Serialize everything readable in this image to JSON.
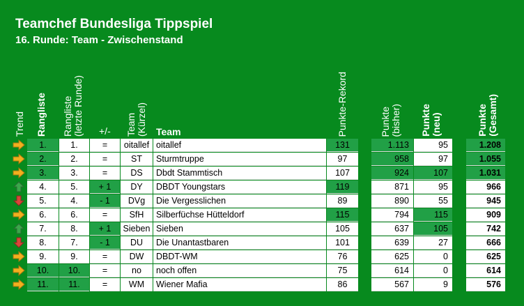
{
  "header": {
    "title": "Teamchef Bundesliga Tippspiel",
    "subtitle": "16. Runde: Team - Zwischenstand"
  },
  "columns": {
    "trend": "Trend",
    "rangliste": "Rangliste",
    "rangliste_letzte_1": "Rangliste",
    "rangliste_letzte_2": "(letzte Runde)",
    "plusminus": "+/-",
    "team_kuerzel_1": "Team",
    "team_kuerzel_2": "(Kürzel)",
    "team": "Team",
    "punkte_rekord": "Punkte-Rekord",
    "punkte_bisher_1": "Punkte",
    "punkte_bisher_2": "(bisher)",
    "punkte_neu_1": "Punkte",
    "punkte_neu_2": "(neu)",
    "punkte_gesamt_1": "Punkte",
    "punkte_gesamt_2": "(Gesamt)"
  },
  "colors": {
    "background": "#078a1e",
    "highlight": "#21a046",
    "arrow_right": "#f2b01e",
    "arrow_up": "#3aa84a",
    "arrow_down": "#d9453a"
  },
  "rows": [
    {
      "trend": "right-arrow-icon",
      "rank": "1.",
      "prev": "1.",
      "diff": "=",
      "short": "oitallef",
      "team": "oitallef",
      "rekord": "131",
      "bisher": "1.113",
      "neu": "95",
      "gesamt": "1.208"
    },
    {
      "trend": "right-arrow-icon",
      "rank": "2.",
      "prev": "2.",
      "diff": "=",
      "short": "ST",
      "team": "Sturmtruppe",
      "rekord": "97",
      "bisher": "958",
      "neu": "97",
      "gesamt": "1.055"
    },
    {
      "trend": "right-arrow-icon",
      "rank": "3.",
      "prev": "3.",
      "diff": "=",
      "short": "DS",
      "team": "Dbdt Stammtisch",
      "rekord": "107",
      "bisher": "924",
      "neu": "107",
      "gesamt": "1.031"
    },
    {
      "trend": "up-arrow-icon",
      "rank": "4.",
      "prev": "5.",
      "diff": "+ 1",
      "short": "DY",
      "team": "DBDT Youngstars",
      "rekord": "119",
      "bisher": "871",
      "neu": "95",
      "gesamt": "966"
    },
    {
      "trend": "down-arrow-icon",
      "rank": "5.",
      "prev": "4.",
      "diff": "- 1",
      "short": "DVg",
      "team": "Die Vergesslichen",
      "rekord": "89",
      "bisher": "890",
      "neu": "55",
      "gesamt": "945"
    },
    {
      "trend": "right-arrow-icon",
      "rank": "6.",
      "prev": "6.",
      "diff": "=",
      "short": "SfH",
      "team": "Silberfüchse Hütteldorf",
      "rekord": "115",
      "bisher": "794",
      "neu": "115",
      "gesamt": "909"
    },
    {
      "trend": "up-arrow-icon",
      "rank": "7.",
      "prev": "8.",
      "diff": "+ 1",
      "short": "Sieben",
      "team": "Sieben",
      "rekord": "105",
      "bisher": "637",
      "neu": "105",
      "gesamt": "742"
    },
    {
      "trend": "down-arrow-icon",
      "rank": "8.",
      "prev": "7.",
      "diff": "- 1",
      "short": "DU",
      "team": "Die Unantastbaren",
      "rekord": "101",
      "bisher": "639",
      "neu": "27",
      "gesamt": "666"
    },
    {
      "trend": "right-arrow-icon",
      "rank": "9.",
      "prev": "9.",
      "diff": "=",
      "short": "DW",
      "team": "DBDT-WM",
      "rekord": "76",
      "bisher": "625",
      "neu": "0",
      "gesamt": "625"
    },
    {
      "trend": "right-arrow-icon",
      "rank": "10.",
      "prev": "10.",
      "diff": "=",
      "short": "no",
      "team": "noch offen",
      "rekord": "75",
      "bisher": "614",
      "neu": "0",
      "gesamt": "614"
    },
    {
      "trend": "right-arrow-icon",
      "rank": "11.",
      "prev": "11.",
      "diff": "=",
      "short": "WM",
      "team": "Wiener Mafia",
      "rekord": "86",
      "bisher": "567",
      "neu": "9",
      "gesamt": "576"
    }
  ]
}
